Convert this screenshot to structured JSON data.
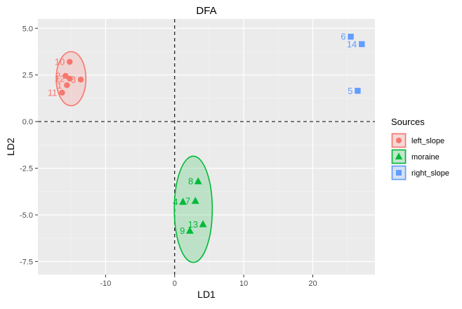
{
  "chart_data": {
    "type": "scatter",
    "title": "DFA",
    "xlabel": "LD1",
    "ylabel": "LD2",
    "xlim": [
      -19.8,
      29.0
    ],
    "ylim": [
      -8.2,
      5.5
    ],
    "xticks": [
      -10,
      0,
      10,
      20
    ],
    "xtick_labels": [
      "-10",
      "0",
      "10",
      "20"
    ],
    "yticks": [
      5.0,
      2.5,
      0.0,
      -2.5,
      -5.0,
      -7.5
    ],
    "ytick_labels": [
      "5.0",
      "2.5",
      "0.0",
      "-2.5",
      "-5.0",
      "-7.5"
    ],
    "grid": true,
    "reference_lines": {
      "x": 0,
      "y": 0,
      "style": "dashed"
    },
    "legend": {
      "title": "Sources",
      "position": "right"
    },
    "series": [
      {
        "name": "left_slope",
        "color": "#F8766D",
        "marker": "circle",
        "points": [
          {
            "label": "10",
            "x": -15.2,
            "y": 3.2
          },
          {
            "label": "2",
            "x": -15.8,
            "y": 2.45
          },
          {
            "label": "12",
            "x": -15.2,
            "y": 2.3
          },
          {
            "label": "3",
            "x": -13.6,
            "y": 2.25
          },
          {
            "label": "1",
            "x": -15.6,
            "y": 1.95
          },
          {
            "label": "11",
            "x": -16.3,
            "y": 1.55
          }
        ],
        "ellipse": {
          "cx": -15.0,
          "cy": 2.3,
          "rx": 2.15,
          "ry": 1.45
        }
      },
      {
        "name": "moraine",
        "color": "#00BA38",
        "marker": "triangle",
        "points": [
          {
            "label": "8",
            "x": 3.4,
            "y": -3.2
          },
          {
            "label": "4",
            "x": 1.2,
            "y": -4.3
          },
          {
            "label": "7",
            "x": 3.0,
            "y": -4.25
          },
          {
            "label": "13",
            "x": 4.1,
            "y": -5.5
          },
          {
            "label": "9",
            "x": 2.2,
            "y": -5.85
          }
        ],
        "ellipse": {
          "cx": 2.7,
          "cy": -4.7,
          "rx": 2.75,
          "ry": 2.85
        }
      },
      {
        "name": "right_slope",
        "color": "#619CFF",
        "marker": "square",
        "points": [
          {
            "label": "6",
            "x": 25.5,
            "y": 4.55
          },
          {
            "label": "14",
            "x": 27.1,
            "y": 4.15
          },
          {
            "label": "5",
            "x": 26.5,
            "y": 1.65
          }
        ]
      }
    ]
  }
}
